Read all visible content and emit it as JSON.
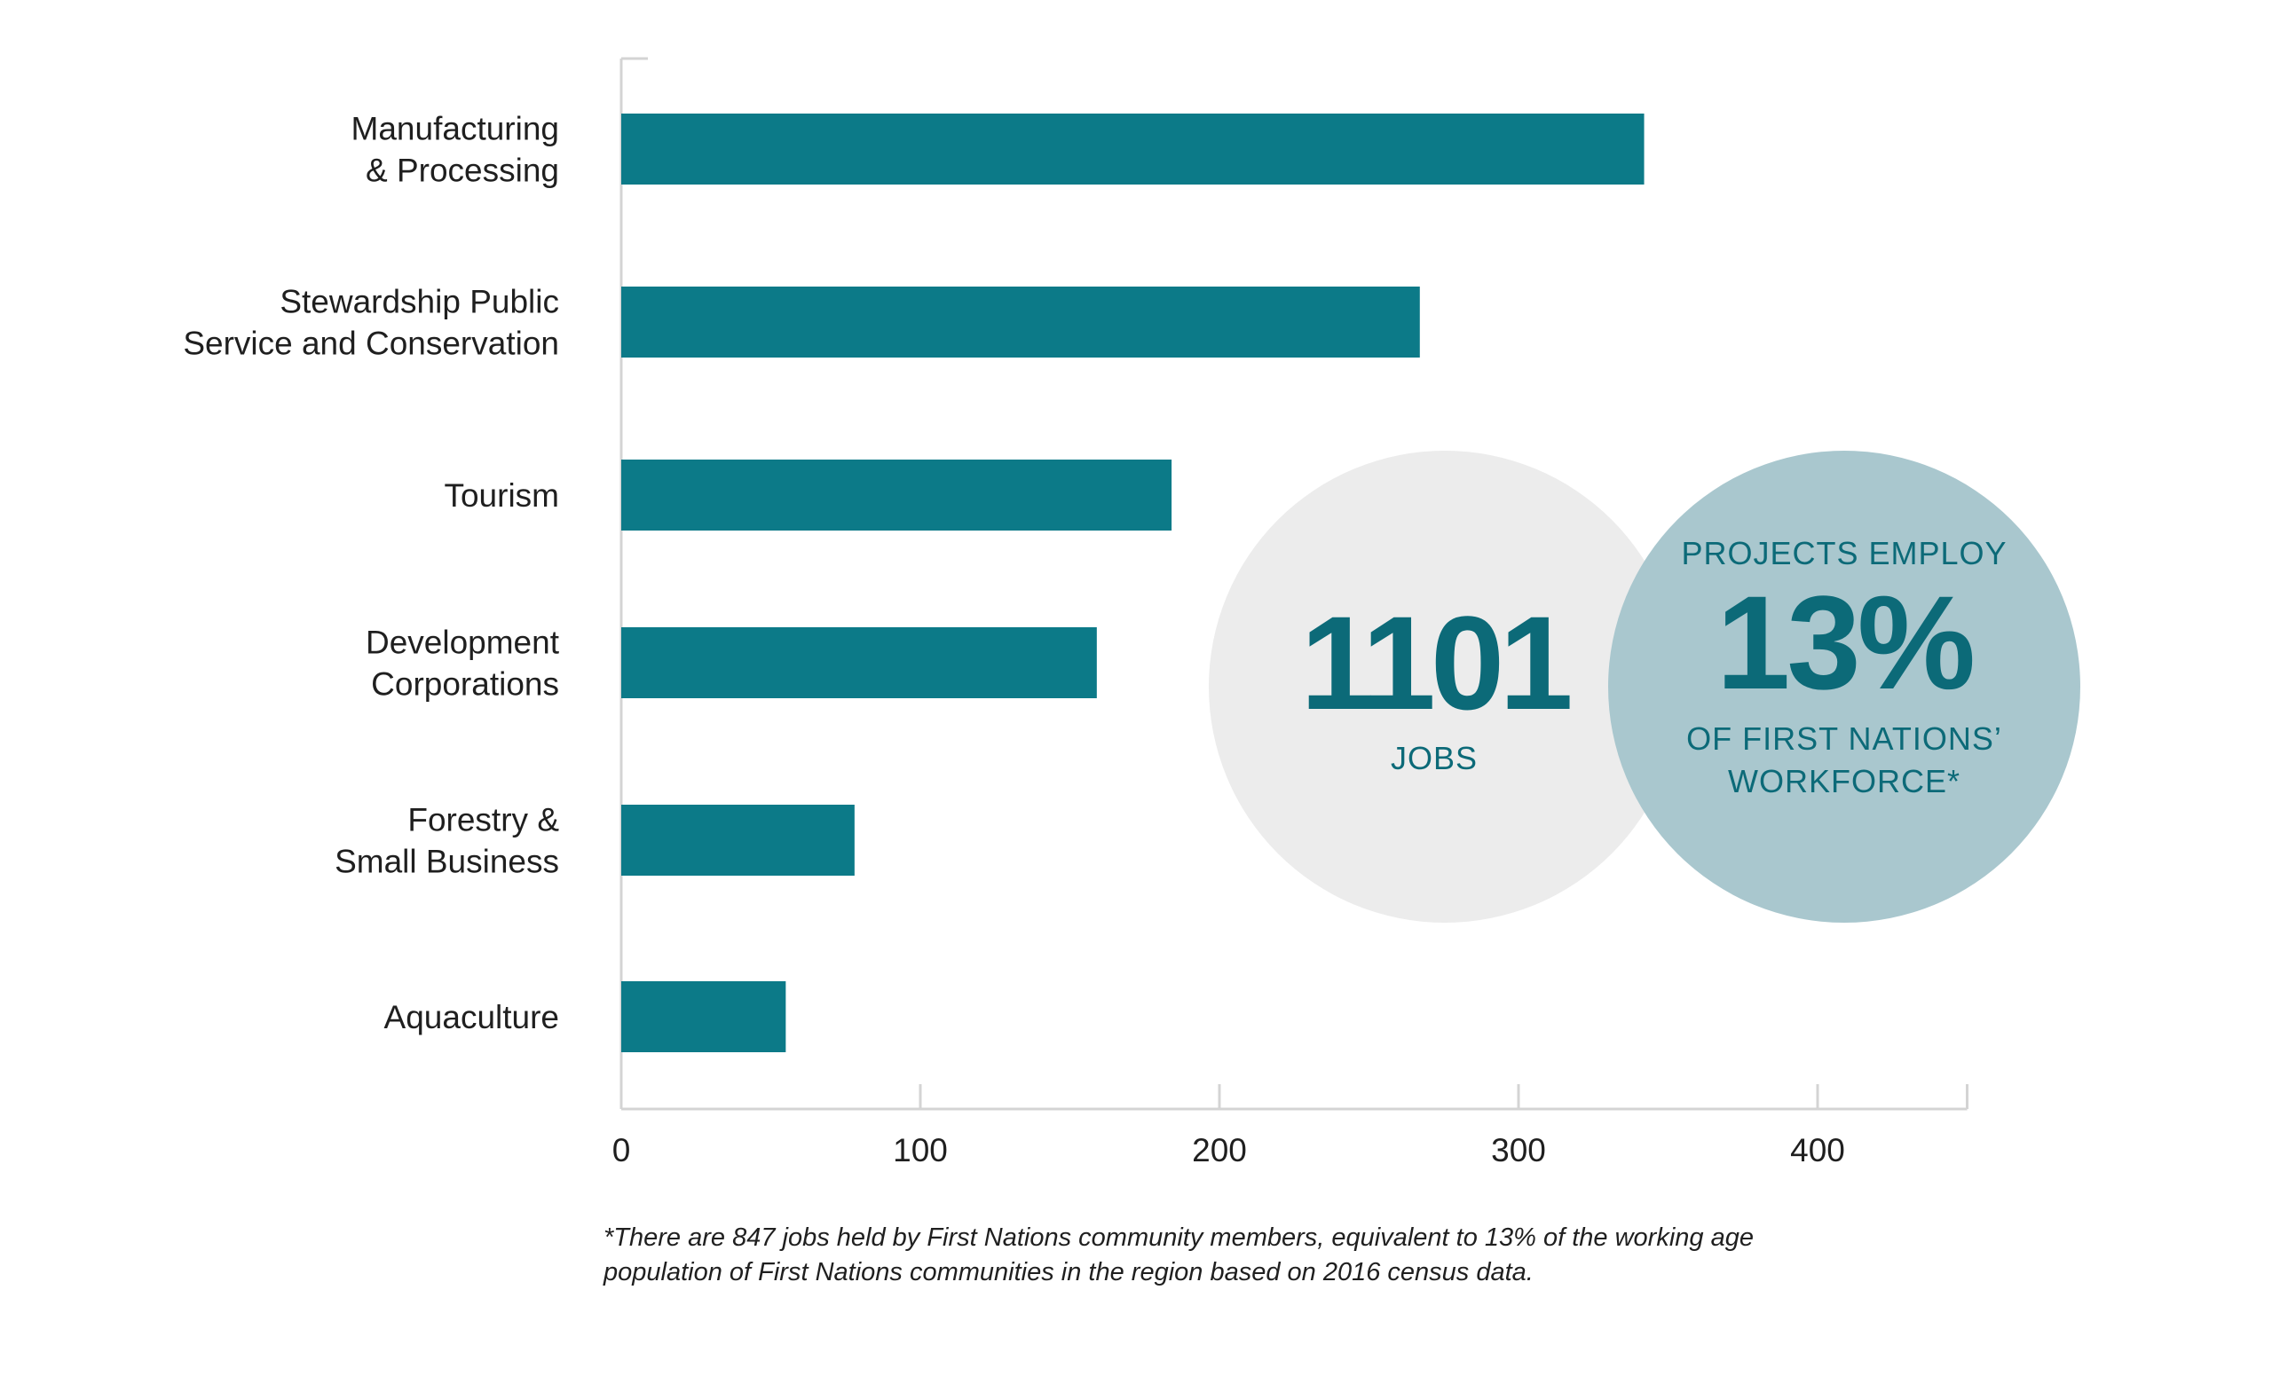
{
  "chart_data": {
    "type": "bar",
    "orientation": "horizontal",
    "categories": [
      [
        "Manufacturing",
        "& Processing"
      ],
      [
        "Stewardship Public",
        "Service and Conservation"
      ],
      [
        "Tourism"
      ],
      [
        "Development",
        "Corporations"
      ],
      [
        "Forestry &",
        "Small Business"
      ],
      [
        "Aquaculture"
      ]
    ],
    "values": [
      342,
      267,
      184,
      159,
      78,
      55
    ],
    "xlim": [
      0,
      450
    ],
    "xticks": [
      0,
      100,
      200,
      300,
      400
    ],
    "tick_labels": [
      "0",
      "100",
      "200",
      "300",
      "400"
    ],
    "xlabel": "",
    "ylabel": "",
    "grid": false,
    "legend": "none",
    "colors": {
      "bar": "#0c7a88",
      "axis": "#d4d4d4"
    }
  },
  "callouts": {
    "jobs": {
      "number": "1101",
      "label": "JOBS",
      "bg_color": "#ececec",
      "text_color": "#0c6a78"
    },
    "percent": {
      "top": "PROJECTS EMPLOY",
      "number": "13%",
      "bottom_line1": "OF FIRST NATIONS’",
      "bottom_line2": "WORKFORCE*",
      "bg_color": "#a9c7ce",
      "text_color": "#0c6a78"
    }
  },
  "footnote": {
    "line1": "*There are 847 jobs held by First Nations community members, equivalent to 13% of the working age",
    "line2": "population of First Nations communities in the region based on 2016 census data."
  }
}
